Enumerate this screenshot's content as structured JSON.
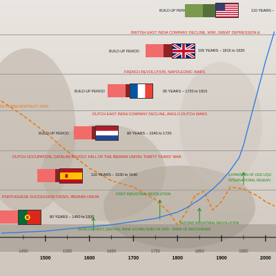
{
  "labels": {
    "build_up": "BUILD-UP PERIOD",
    "mortality": "DE HUMAN MORTALITY RATE"
  },
  "rows": [
    {
      "id": "us",
      "flag": "us-flag",
      "events": "",
      "span": "110 YEARS –"
    },
    {
      "id": "uk",
      "flag": "uk-flag",
      "events": "BRITISH EAST INDIA COMPANY DECLINE, WWI, GREAT DEPRESSION &",
      "span": "105 YEARS – 1815 to 1920"
    },
    {
      "id": "fr",
      "flag": "france-flag",
      "events": "FRENCH REVOLUTION, NAPOLEONIC WARS",
      "span": "95 YEARS – 1720 to 1815"
    },
    {
      "id": "nl",
      "flag": "netherlands-flag",
      "events": "DUTCH EAST INDIA COMPANY DECLINE, ANGLO-DUTCH WARS",
      "span": "80 YEARS – 1640 to 1720"
    },
    {
      "id": "es",
      "flag": "spain-flag",
      "events": "DUTCH OCCUPATION, CATALAN REVOLT, FALL OF THE IBERIAN UNION, THIRTY YEARS' WAR",
      "span": "110 YEARS – 1530 to 1640"
    },
    {
      "id": "pt",
      "flag": "portugal-flag",
      "events": "PORTUGUESE SUCCESSION CRISIS, IBERIAN UNION",
      "span": "80 YEARS – 1450 to 1530"
    }
  ],
  "annotations": {
    "first_central_bank": "WORLDS FIRST CENTRAL BANK ESTABLISHED IN 1609 – BANK OF AMSTERDAM",
    "first_industrial": "FIRST INDUSTRIAL REVOLUTION",
    "second_industrial": "SECOND INDUSTRIAL REVOLUTION",
    "usd_line1": "EXPANSION OF USD LIQU",
    "usd_line2": "INTERNATIONAL RESERV"
  },
  "colors": {
    "growth_line": "#2f7ee0",
    "mortality_line": "#e87a12",
    "events_text": "#d8271c",
    "annotation_text": "#1e8c1e",
    "us": [
      "#7a9a4f",
      "#55703a"
    ],
    "uk": [
      "#f26b6b",
      "#8e2322"
    ],
    "fr": [
      "#f26b6b",
      "#8e2322"
    ],
    "nl": [
      "#f26b6b",
      "#8e2322"
    ],
    "es": [
      "#f26b6b",
      "#8e2322"
    ],
    "pt": [
      "#f26b6b",
      "#8e2322"
    ]
  },
  "chart_data": {
    "type": "line",
    "title": "",
    "xlabel": "",
    "ylabel": "",
    "xlim": [
      1400,
      2030
    ],
    "ylim": [
      0,
      100
    ],
    "x_ticks": [
      1450,
      1500,
      1550,
      1600,
      1650,
      1700,
      1750,
      1800,
      1850,
      1900,
      1950,
      2000,
      2050
    ],
    "major_ticks": [
      1500,
      1600,
      1700,
      1800,
      1900,
      2000
    ],
    "markers": [
      1609,
      1760,
      1850,
      1950
    ],
    "series": [
      {
        "name": "",
        "style": "solid",
        "x": [
          1400,
          1450,
          1500,
          1550,
          1600,
          1650,
          1700,
          1750,
          1800,
          1820,
          1850,
          1880,
          1900,
          1920,
          1940,
          1950,
          1960,
          1970,
          1980,
          1990,
          2000,
          2010,
          2020
        ],
        "y": [
          2,
          2.5,
          3,
          4,
          5,
          6,
          7.5,
          9,
          12,
          14,
          18,
          23,
          27,
          32,
          38,
          44,
          52,
          60,
          68,
          76,
          84,
          91,
          98
        ]
      },
      {
        "name": "DE HUMAN MORTALITY RATE",
        "style": "dashed",
        "x": [
          1400,
          1450,
          1500,
          1550,
          1600,
          1650,
          1700,
          1750,
          1780,
          1800,
          1820,
          1840,
          1860,
          1880,
          1900,
          1920,
          1950,
          1980,
          2000,
          2020
        ],
        "y": [
          65,
          58,
          50,
          41,
          33,
          27,
          24,
          18,
          12,
          6,
          12,
          20,
          22,
          13,
          17,
          24,
          23,
          20,
          17,
          15
        ]
      }
    ]
  }
}
